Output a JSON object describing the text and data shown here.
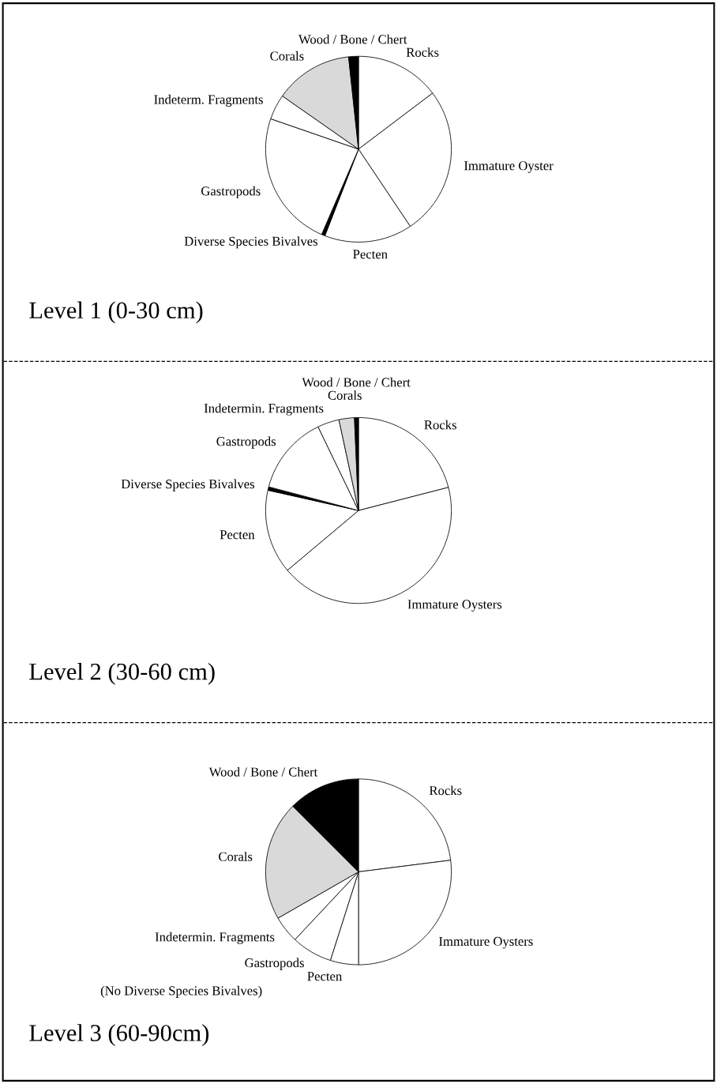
{
  "chart_data": [
    {
      "type": "pie",
      "title": "Level 1 (0-30 cm)",
      "categories": [
        "Rocks",
        "Immature Oyster",
        "Pecten",
        "Diverse Species Bivalves",
        "Gastropods",
        "Indeterm. Fragments",
        "Corals",
        "Wood / Bone / Chert"
      ],
      "values": [
        14.7,
        25.9,
        15.3,
        0.6,
        23.8,
        4.4,
        13.6,
        1.7
      ],
      "colors": [
        "#ffffff",
        "#ffffff",
        "#ffffff",
        "#000000",
        "#ffffff",
        "#ffffff",
        "#d9d9d9",
        "#000000"
      ]
    },
    {
      "type": "pie",
      "title": "Level 2 (30-60 cm)",
      "categories": [
        "Rocks",
        "Immature Oysters",
        "Pecten",
        "Diverse Species Bivalves",
        "Gastropods",
        "Indetermin. Fragments",
        "Corals",
        "Wood / Bone / Chert"
      ],
      "values": [
        21.1,
        43.1,
        14.7,
        0.6,
        13.8,
        3.8,
        2.7,
        0.7
      ],
      "colors": [
        "#ffffff",
        "#ffffff",
        "#ffffff",
        "#000000",
        "#ffffff",
        "#ffffff",
        "#d9d9d9",
        "#000000"
      ]
    },
    {
      "type": "pie",
      "title": "Level 3 (60-90cm)",
      "categories": [
        "Rocks",
        "Immature Oysters",
        "Pecten",
        "Gastropods",
        "Indetermin. Fragments",
        "Corals",
        "Wood / Bone / Chert"
      ],
      "values": [
        23,
        27,
        4.9,
        7.1,
        4.7,
        20.8,
        12.5
      ],
      "colors": [
        "#ffffff",
        "#ffffff",
        "#ffffff",
        "#ffffff",
        "#ffffff",
        "#d9d9d9",
        "#000000"
      ],
      "annotations": [
        "(No Diverse Species Bivalves)"
      ]
    }
  ]
}
